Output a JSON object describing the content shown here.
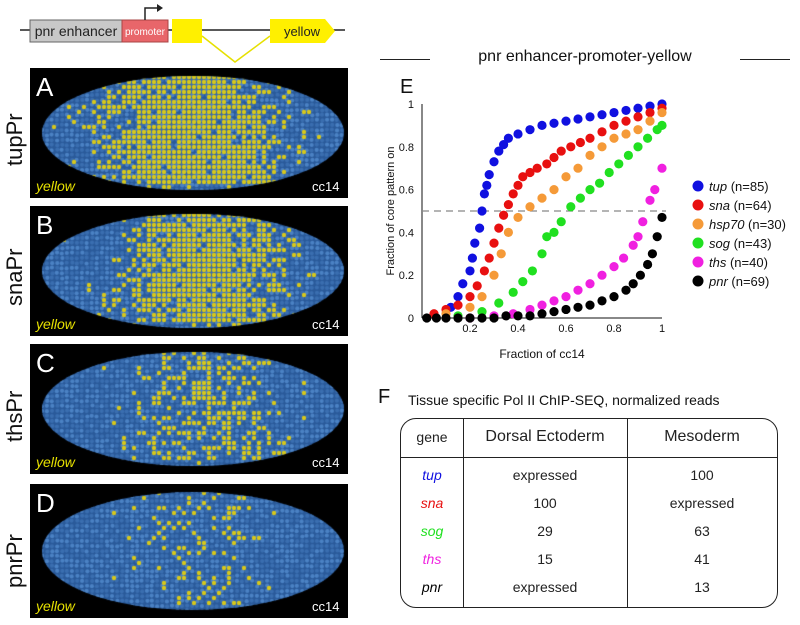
{
  "construct": {
    "enhancer_label": "pnr enhancer",
    "promoter_label": "promoter",
    "reporter_label": "yellow",
    "colors": {
      "enhancer": "#c8c8c8",
      "promoter": "#e8666a",
      "reporter": "#fff000"
    }
  },
  "panels": [
    {
      "letter": "A",
      "side_label": "tupPr",
      "stain": "yellow",
      "stage": "cc14"
    },
    {
      "letter": "B",
      "side_label": "snaPr",
      "stain": "yellow",
      "stage": "cc14"
    },
    {
      "letter": "C",
      "side_label": "thsPr",
      "stain": "yellow",
      "stage": "cc14"
    },
    {
      "letter": "D",
      "side_label": "pnrPr",
      "stain": "yellow",
      "stage": "cc14"
    }
  ],
  "chart_title": "pnr enhancer-promoter-yellow",
  "panel_E": {
    "letter": "E"
  },
  "chart_data": {
    "type": "scatter",
    "title": "pnr enhancer-promoter-yellow",
    "xlabel": "Fraction of cc14",
    "ylabel": "Fraction of core pattern on",
    "xlim": [
      0,
      1
    ],
    "ylim": [
      0,
      1
    ],
    "xticks": [
      "0.2",
      "0.4",
      "0.6",
      "0.8",
      "1"
    ],
    "yticks": [
      "0",
      "0.2",
      "0.4",
      "0.6",
      "0.8",
      "1"
    ],
    "reference_line_y": 0.5,
    "series": [
      {
        "name": "tup",
        "n_label": "(n=85)",
        "color": "#1010e0",
        "points": [
          [
            0.12,
            0.05
          ],
          [
            0.15,
            0.1
          ],
          [
            0.17,
            0.16
          ],
          [
            0.2,
            0.22
          ],
          [
            0.21,
            0.28
          ],
          [
            0.22,
            0.35
          ],
          [
            0.24,
            0.42
          ],
          [
            0.25,
            0.5
          ],
          [
            0.26,
            0.58
          ],
          [
            0.27,
            0.62
          ],
          [
            0.28,
            0.67
          ],
          [
            0.3,
            0.73
          ],
          [
            0.32,
            0.78
          ],
          [
            0.34,
            0.81
          ],
          [
            0.36,
            0.84
          ],
          [
            0.4,
            0.86
          ],
          [
            0.45,
            0.88
          ],
          [
            0.5,
            0.9
          ],
          [
            0.55,
            0.91
          ],
          [
            0.6,
            0.92
          ],
          [
            0.65,
            0.93
          ],
          [
            0.7,
            0.94
          ],
          [
            0.75,
            0.95
          ],
          [
            0.8,
            0.96
          ],
          [
            0.85,
            0.97
          ],
          [
            0.9,
            0.98
          ],
          [
            0.95,
            0.99
          ],
          [
            1.0,
            1.0
          ]
        ]
      },
      {
        "name": "sna",
        "n_label": "(n=64)",
        "color": "#e81010",
        "points": [
          [
            0.05,
            0.02
          ],
          [
            0.1,
            0.04
          ],
          [
            0.15,
            0.06
          ],
          [
            0.2,
            0.1
          ],
          [
            0.23,
            0.15
          ],
          [
            0.26,
            0.22
          ],
          [
            0.28,
            0.28
          ],
          [
            0.3,
            0.35
          ],
          [
            0.32,
            0.42
          ],
          [
            0.34,
            0.48
          ],
          [
            0.36,
            0.53
          ],
          [
            0.38,
            0.58
          ],
          [
            0.4,
            0.62
          ],
          [
            0.42,
            0.66
          ],
          [
            0.45,
            0.68
          ],
          [
            0.48,
            0.7
          ],
          [
            0.52,
            0.72
          ],
          [
            0.55,
            0.75
          ],
          [
            0.58,
            0.78
          ],
          [
            0.62,
            0.8
          ],
          [
            0.66,
            0.82
          ],
          [
            0.7,
            0.84
          ],
          [
            0.75,
            0.87
          ],
          [
            0.8,
            0.9
          ],
          [
            0.85,
            0.92
          ],
          [
            0.9,
            0.94
          ],
          [
            0.95,
            0.96
          ],
          [
            1.0,
            0.98
          ]
        ]
      },
      {
        "name": "hsp70",
        "n_label": "(n=30)",
        "color": "#f59a38",
        "points": [
          [
            0.1,
            0.02
          ],
          [
            0.2,
            0.05
          ],
          [
            0.25,
            0.1
          ],
          [
            0.3,
            0.2
          ],
          [
            0.33,
            0.3
          ],
          [
            0.36,
            0.4
          ],
          [
            0.4,
            0.47
          ],
          [
            0.45,
            0.52
          ],
          [
            0.5,
            0.56
          ],
          [
            0.55,
            0.6
          ],
          [
            0.6,
            0.66
          ],
          [
            0.65,
            0.7
          ],
          [
            0.7,
            0.76
          ],
          [
            0.75,
            0.8
          ],
          [
            0.8,
            0.84
          ],
          [
            0.85,
            0.86
          ],
          [
            0.9,
            0.88
          ],
          [
            0.95,
            0.92
          ],
          [
            1.0,
            0.96
          ]
        ]
      },
      {
        "name": "sog",
        "n_label": "(n=43)",
        "color": "#20e020",
        "points": [
          [
            0.15,
            0.01
          ],
          [
            0.25,
            0.03
          ],
          [
            0.32,
            0.07
          ],
          [
            0.38,
            0.12
          ],
          [
            0.42,
            0.17
          ],
          [
            0.46,
            0.22
          ],
          [
            0.5,
            0.3
          ],
          [
            0.52,
            0.38
          ],
          [
            0.55,
            0.4
          ],
          [
            0.58,
            0.45
          ],
          [
            0.62,
            0.52
          ],
          [
            0.66,
            0.56
          ],
          [
            0.7,
            0.6
          ],
          [
            0.74,
            0.63
          ],
          [
            0.78,
            0.68
          ],
          [
            0.82,
            0.72
          ],
          [
            0.86,
            0.76
          ],
          [
            0.9,
            0.8
          ],
          [
            0.94,
            0.84
          ],
          [
            0.98,
            0.88
          ],
          [
            1.0,
            0.9
          ]
        ]
      },
      {
        "name": "ths",
        "n_label": "(n=40)",
        "color": "#f020e0",
        "points": [
          [
            0.2,
            0.0
          ],
          [
            0.3,
            0.01
          ],
          [
            0.38,
            0.02
          ],
          [
            0.45,
            0.04
          ],
          [
            0.5,
            0.06
          ],
          [
            0.55,
            0.08
          ],
          [
            0.6,
            0.1
          ],
          [
            0.65,
            0.13
          ],
          [
            0.7,
            0.16
          ],
          [
            0.75,
            0.2
          ],
          [
            0.8,
            0.24
          ],
          [
            0.84,
            0.28
          ],
          [
            0.88,
            0.34
          ],
          [
            0.9,
            0.38
          ],
          [
            0.92,
            0.45
          ],
          [
            0.95,
            0.55
          ],
          [
            0.97,
            0.6
          ],
          [
            1.0,
            0.7
          ]
        ]
      },
      {
        "name": "pnr",
        "n_label": "(n=69)",
        "color": "#000000",
        "points": [
          [
            0.02,
            0.0
          ],
          [
            0.06,
            0.0
          ],
          [
            0.1,
            0.0
          ],
          [
            0.15,
            0.0
          ],
          [
            0.2,
            0.0
          ],
          [
            0.25,
            0.0
          ],
          [
            0.3,
            0.0
          ],
          [
            0.35,
            0.01
          ],
          [
            0.4,
            0.01
          ],
          [
            0.45,
            0.01
          ],
          [
            0.5,
            0.02
          ],
          [
            0.55,
            0.03
          ],
          [
            0.6,
            0.04
          ],
          [
            0.65,
            0.05
          ],
          [
            0.7,
            0.06
          ],
          [
            0.75,
            0.08
          ],
          [
            0.8,
            0.1
          ],
          [
            0.85,
            0.13
          ],
          [
            0.88,
            0.16
          ],
          [
            0.91,
            0.2
          ],
          [
            0.94,
            0.25
          ],
          [
            0.96,
            0.3
          ],
          [
            0.98,
            0.38
          ],
          [
            1.0,
            0.47
          ]
        ]
      }
    ]
  },
  "panel_F": {
    "letter": "F",
    "title": "Tissue specific Pol II ChIP-SEQ, normalized reads",
    "headers": [
      "gene",
      "Dorsal Ectoderm",
      "Mesoderm"
    ],
    "rows": [
      {
        "gene": "tup",
        "color": "#1010e0",
        "de": "expressed",
        "meso": "100"
      },
      {
        "gene": "sna",
        "color": "#e81010",
        "de": "100",
        "meso": "expressed"
      },
      {
        "gene": "sog",
        "color": "#20e020",
        "de": "29",
        "meso": "63"
      },
      {
        "gene": "ths",
        "color": "#f020e0",
        "de": "15",
        "meso": "41"
      },
      {
        "gene": "pnr",
        "color": "#000000",
        "de": "expressed",
        "meso": "13"
      }
    ]
  }
}
